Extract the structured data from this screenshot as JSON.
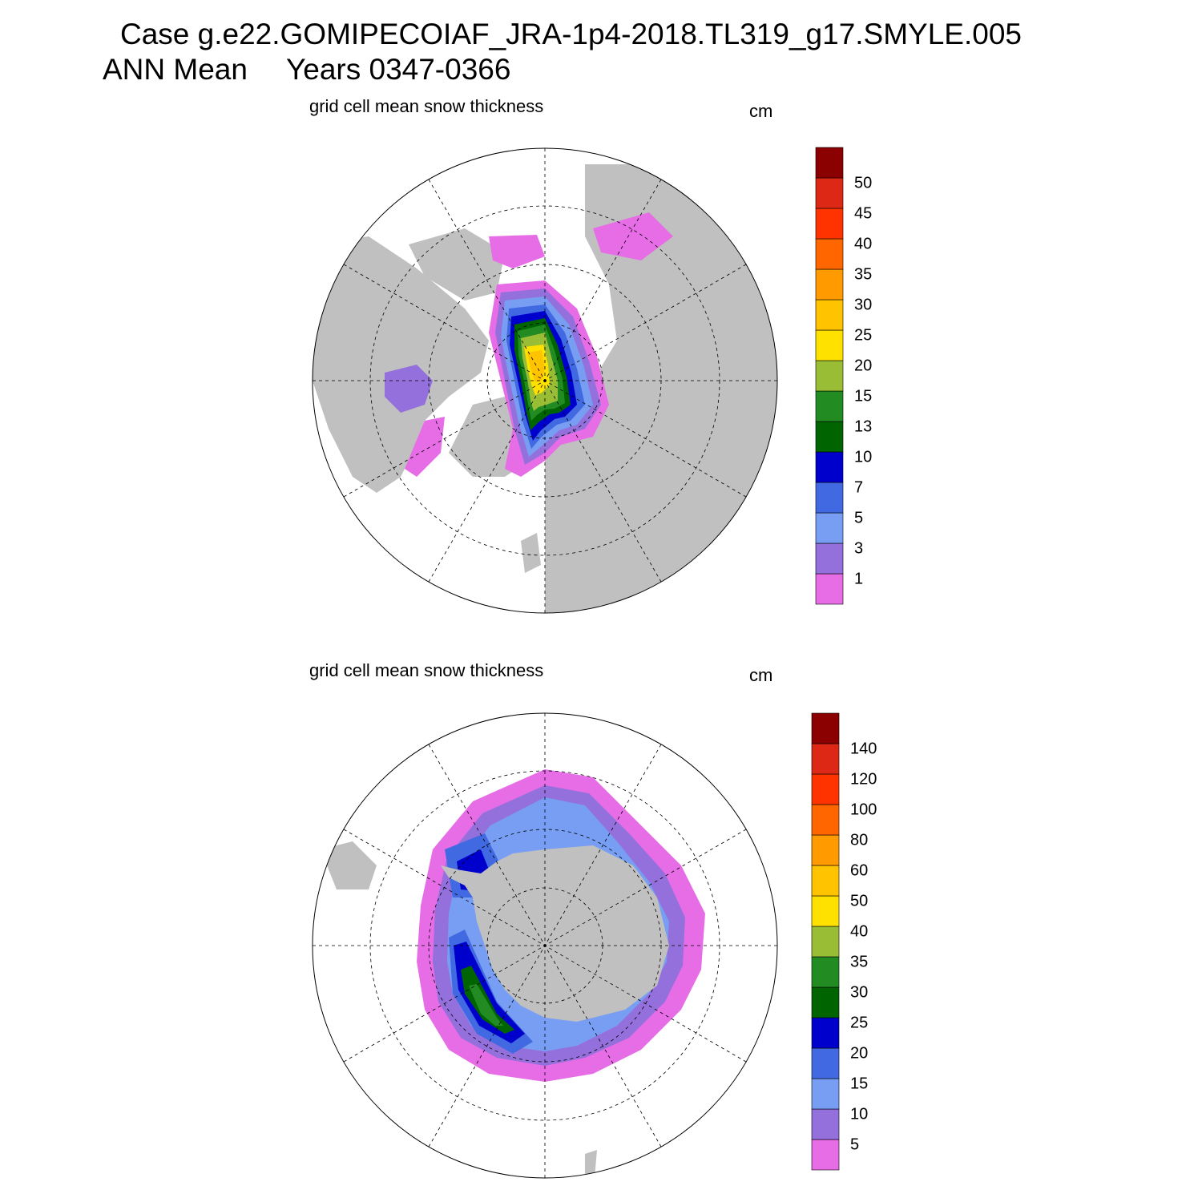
{
  "title": {
    "line1": "Case g.e22.GOMIPECOIAF_JRA-1p4-2018.TL319_g17.SMYLE.005",
    "line2_prefix": "ANN Mean",
    "line2_years": "Years 0347-0366"
  },
  "colors": {
    "land": "#c0c0c0",
    "ocean": "#ffffff",
    "outline": "#000000",
    "palette": [
      "#e66de6",
      "#9370db",
      "#779ef2",
      "#4169e1",
      "#0000cd",
      "#006400",
      "#228b22",
      "#9abd36",
      "#ffe100",
      "#ffc300",
      "#ff9a00",
      "#ff6600",
      "#ff3300",
      "#dc2814",
      "#8b0000"
    ]
  },
  "chart_data": [
    {
      "type": "heatmap",
      "projection": "polar-stereographic-north",
      "title": "grid cell mean snow thickness",
      "units": "cm",
      "levels": [
        1,
        3,
        5,
        7,
        10,
        13,
        15,
        20,
        25,
        30,
        35,
        40,
        45,
        50
      ],
      "level_labels": [
        "1",
        "3",
        "5",
        "7",
        "10",
        "13",
        "15",
        "20",
        "25",
        "30",
        "35",
        "40",
        "45",
        "50"
      ]
    },
    {
      "type": "heatmap",
      "projection": "polar-stereographic-south",
      "title": "grid cell mean snow thickness",
      "units": "cm",
      "levels": [
        5,
        10,
        15,
        20,
        25,
        30,
        35,
        40,
        50,
        60,
        80,
        100,
        120,
        140
      ],
      "level_labels": [
        "5",
        "10",
        "15",
        "20",
        "25",
        "30",
        "35",
        "40",
        "50",
        "60",
        "80",
        "100",
        "120",
        "140"
      ]
    }
  ]
}
